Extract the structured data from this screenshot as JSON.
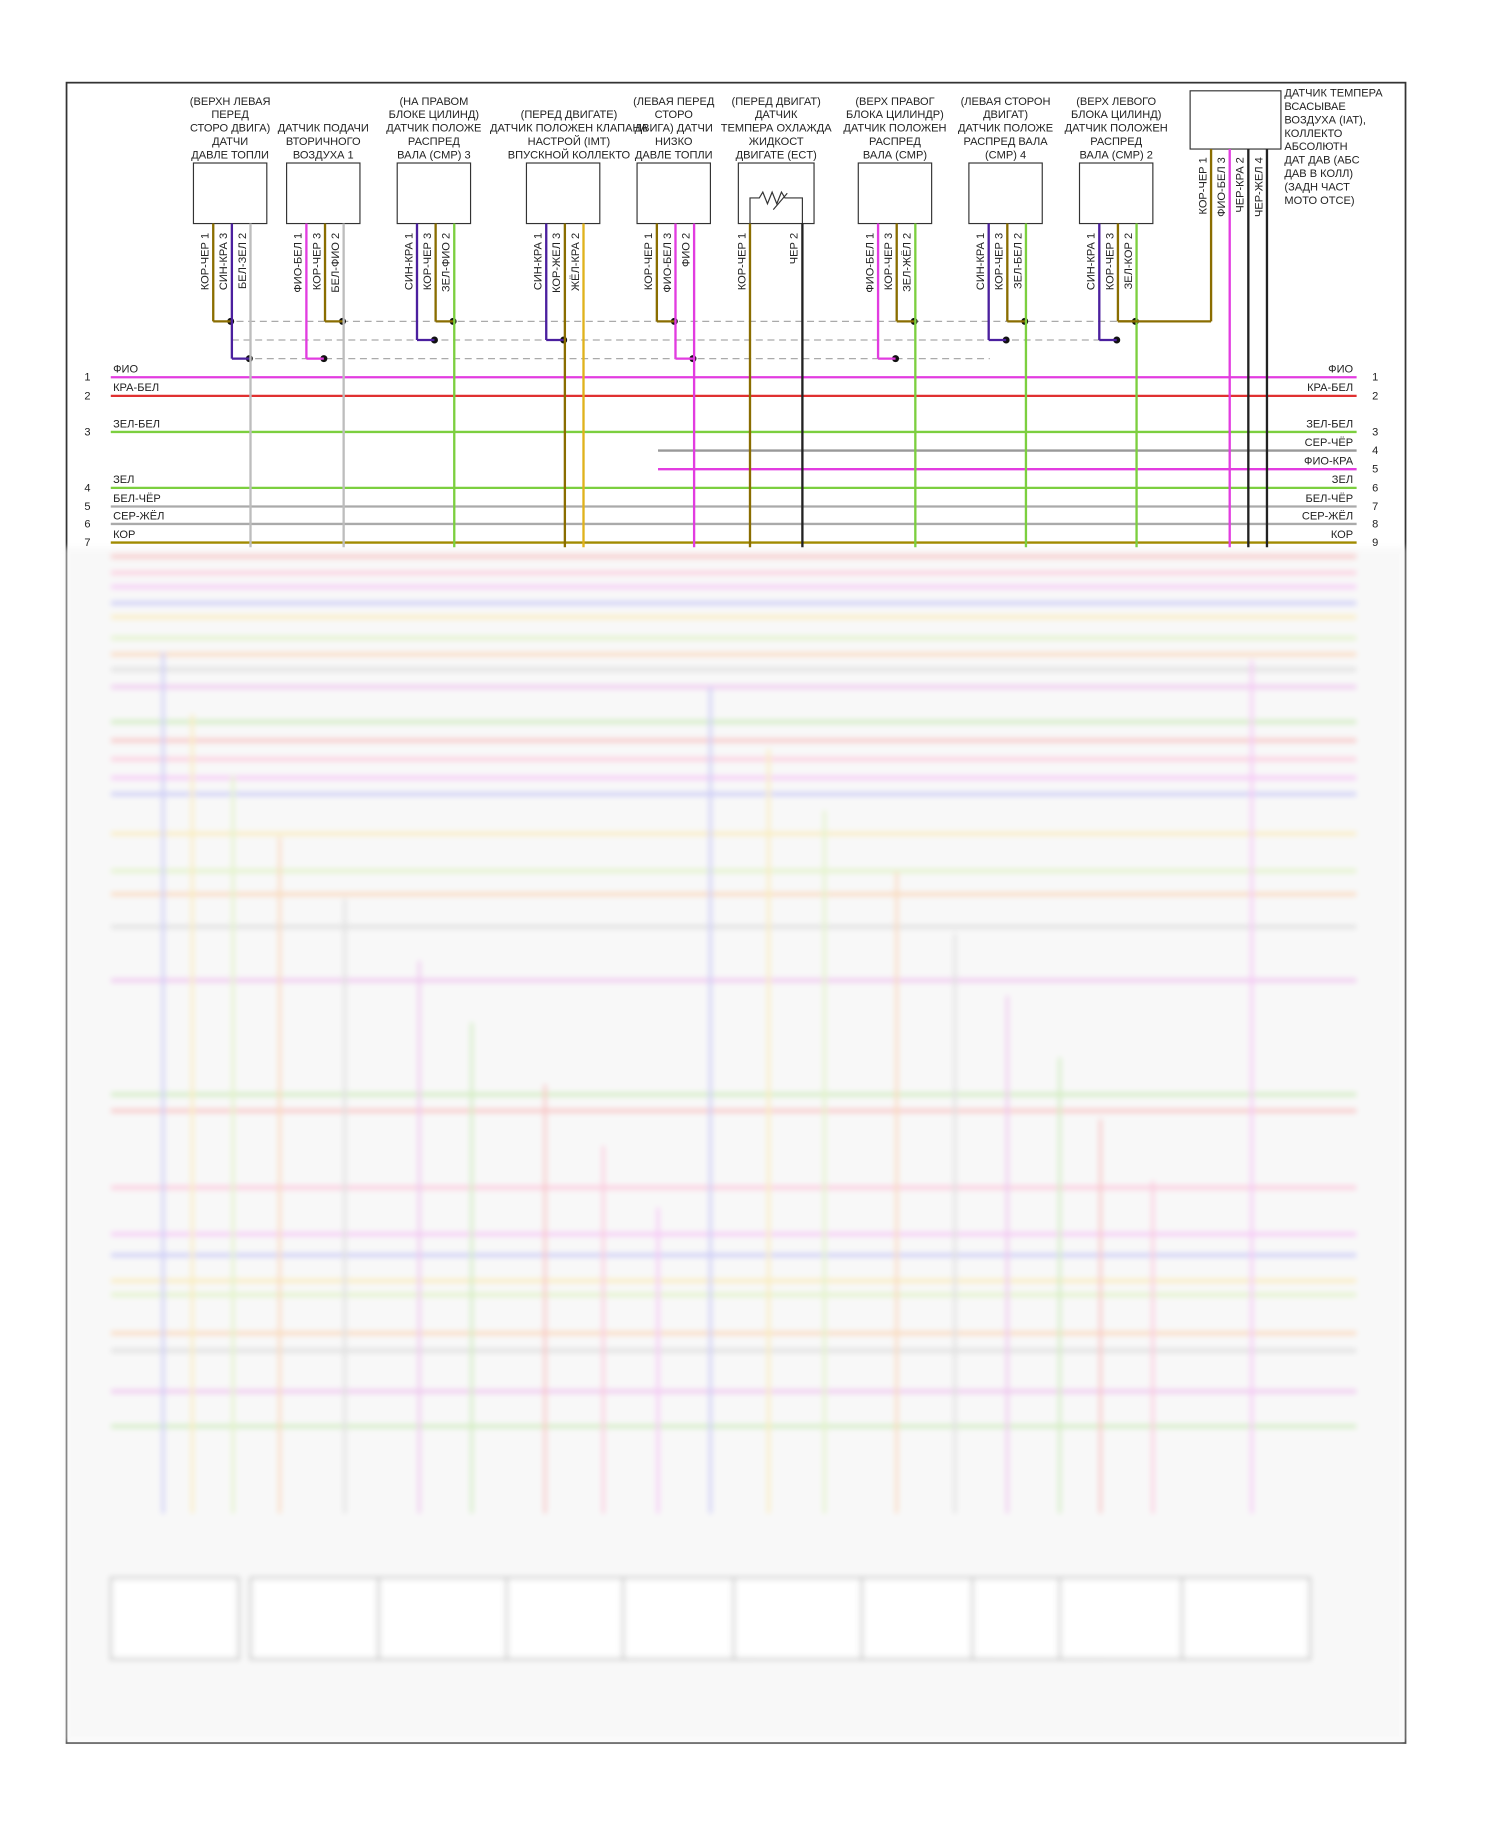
{
  "sensors": [
    {
      "label": [
        "(ВЕРХН ЛЕВАЯ",
        "ПЕРЕД",
        "СТОРО ДВИГА)",
        "ДАТЧИ",
        "ДАВЛЕ ТОПЛИ"
      ],
      "pins": [
        {
          "wire": "КОР-ЧЕР",
          "num": "1"
        },
        {
          "wire": "СИН-КРА",
          "num": "3"
        },
        {
          "wire": "БЕЛ-ЗЕЛ",
          "num": "2"
        }
      ]
    },
    {
      "label": [
        "ДАТЧИК ПОДАЧИ",
        "ВТОРИЧНОГО",
        "ВОЗДУХА 1"
      ],
      "pins": [
        {
          "wire": "ФИО-БЕЛ",
          "num": "1"
        },
        {
          "wire": "КОР-ЧЕР",
          "num": "3"
        },
        {
          "wire": "БЕЛ-ФИО",
          "num": "2"
        }
      ]
    },
    {
      "label": [
        "(НА ПРАВОМ",
        "БЛОКЕ ЦИЛИНД)",
        "ДАТЧИК ПОЛОЖЕ",
        "РАСПРЕД",
        "ВАЛА (CMP) 3"
      ],
      "pins": [
        {
          "wire": "СИН-КРА",
          "num": "1"
        },
        {
          "wire": "КОР-ЧЕР",
          "num": "3"
        },
        {
          "wire": "ЗЕЛ-ФИО",
          "num": "2"
        }
      ]
    },
    {
      "label": [
        "(ПЕРЕД ДВИГАТЕ)",
        "ДАТЧИК ПОЛОЖЕН КЛАПАНА",
        "НАСТРОЙ (IMT)",
        "ВПУСКНОЙ КОЛЛЕКТО"
      ],
      "pins": [
        {
          "wire": "СИН-КРА",
          "num": "1"
        },
        {
          "wire": "КОР-ЖЕЛ",
          "num": "3"
        },
        {
          "wire": "ЖЁЛ-КРА",
          "num": "2"
        }
      ]
    },
    {
      "label": [
        "(ЛЕВАЯ ПЕРЕД",
        "СТОРО",
        "ДВИГА) ДАТЧИ",
        "НИЗКО",
        "ДАВЛЕ ТОПЛИ"
      ],
      "pins": [
        {
          "wire": "КОР-ЧЕР",
          "num": "1"
        },
        {
          "wire": "ФИО-БЕЛ",
          "num": "3"
        },
        {
          "wire": "ФИО",
          "num": "2"
        }
      ]
    },
    {
      "label": [
        "(ПЕРЕД ДВИГАТ)",
        "ДАТЧИК",
        "ТЕМПЕРА ОХЛАЖДА",
        "ЖИДКОСТ",
        "ДВИГАТЕ (ECT)"
      ],
      "pins": [
        {
          "wire": "КОР-ЧЕР",
          "num": "1"
        },
        {
          "wire": "ЧЕР",
          "num": "2"
        }
      ]
    },
    {
      "label": [
        "(ВЕРХ ПРАВОГ",
        "БЛОКА ЦИЛИНДР)",
        "ДАТЧИК ПОЛОЖЕН",
        "РАСПРЕД",
        "ВАЛА (CMP)"
      ],
      "pins": [
        {
          "wire": "ФИО-БЕЛ",
          "num": "1"
        },
        {
          "wire": "КОР-ЧЕР",
          "num": "3"
        },
        {
          "wire": "ЗЕЛ-ЖЁЛ",
          "num": "2"
        }
      ]
    },
    {
      "label": [
        "(ЛЕВАЯ СТОРОН",
        "ДВИГАТ)",
        "ДАТЧИК ПОЛОЖЕ",
        "РАСПРЕД ВАЛА",
        "(CMP) 4"
      ],
      "pins": [
        {
          "wire": "СИН-КРА",
          "num": "1"
        },
        {
          "wire": "КОР-ЧЕР",
          "num": "3"
        },
        {
          "wire": "ЗЕЛ-БЕЛ",
          "num": "2"
        }
      ]
    },
    {
      "label": [
        "(ВЕРХ ЛЕВОГО",
        "БЛОКА ЦИЛИНД)",
        "ДАТЧИК ПОЛОЖЕН",
        "РАСПРЕД",
        "ВАЛА (CMP) 2"
      ],
      "pins": [
        {
          "wire": "СИН-КРА",
          "num": "1"
        },
        {
          "wire": "КОР-ЧЕР",
          "num": "3"
        },
        {
          "wire": "ЗЕЛ-КОР",
          "num": "2"
        }
      ]
    }
  ],
  "iat_sensor": {
    "label": [
      "ДАТЧИК ТЕМПЕРА",
      "ВСАСЫВАЕ",
      "ВОЗДУХА (IAT),",
      "КОЛЛЕКТО",
      "АБСОЛЮТН",
      "ДАТ ДАВ (АБС",
      "ДАВ В КОЛЛ)",
      "(ЗАДН ЧАСТ",
      "МОТО ОТСЕ)"
    ],
    "pins": [
      {
        "wire": "КОР-ЧЕР",
        "num": "1"
      },
      {
        "wire": "ФИО-БЕЛ",
        "num": "3"
      },
      {
        "wire": "ЧЕР-КРА",
        "num": "2"
      },
      {
        "wire": "ЧЕР-ЖЕЛ",
        "num": "4"
      }
    ]
  },
  "buses": [
    {
      "left": {
        "num": "1",
        "label": "ФИО"
      },
      "right": {
        "num": "1",
        "label": "ФИО"
      }
    },
    {
      "left": {
        "num": "2",
        "label": "КРА-БЕЛ"
      },
      "right": {
        "num": "2",
        "label": "КРА-БЕЛ"
      }
    },
    {
      "left": {
        "num": "3",
        "label": "ЗЕЛ-БЕЛ"
      },
      "right": {
        "num": "3",
        "label": "ЗЕЛ-БЕЛ"
      }
    },
    {
      "right": {
        "num": "4",
        "label": "СЕР-ЧЁР"
      }
    },
    {
      "right": {
        "num": "5",
        "label": "ФИО-КРА"
      }
    },
    {
      "left": {
        "num": "4",
        "label": "ЗЕЛ"
      },
      "right": {
        "num": "6",
        "label": "ЗЕЛ"
      }
    },
    {
      "left": {
        "num": "5",
        "label": "БЕЛ-ЧЁР"
      },
      "right": {
        "num": "7",
        "label": "БЕЛ-ЧЁР"
      }
    },
    {
      "left": {
        "num": "6",
        "label": "СЕР-ЖЁЛ"
      },
      "right": {
        "num": "8",
        "label": "СЕР-ЖЁЛ"
      }
    },
    {
      "left": {
        "num": "7",
        "label": "КОР"
      },
      "right": {
        "num": "9",
        "label": "КОР"
      }
    }
  ]
}
